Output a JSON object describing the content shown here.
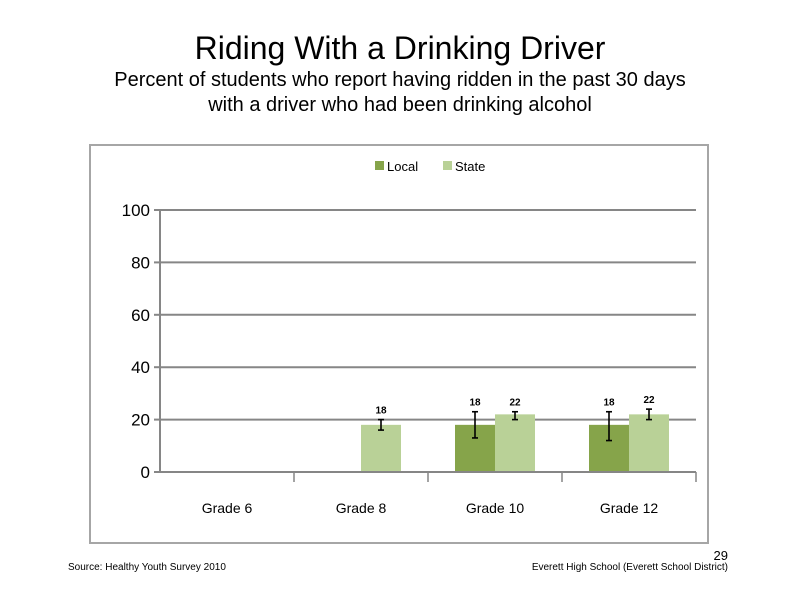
{
  "title": "Riding With a Drinking Driver",
  "subtitle_line1": "Percent of students who report having ridden in the past 30 days",
  "subtitle_line2": "with a driver who had been drinking alcohol",
  "footer": {
    "source": "Source: Healthy Youth Survey 2010",
    "school": "Everett High School (Everett School District)",
    "page": "29"
  },
  "chart_data": {
    "type": "bar",
    "categories": [
      "Grade 6",
      "Grade 8",
      "Grade 10",
      "Grade 12"
    ],
    "series": [
      {
        "name": "Local",
        "color": "#86a44a",
        "values": [
          null,
          null,
          18,
          18
        ],
        "labels": [
          "",
          "",
          "18",
          "18"
        ],
        "err_low": [
          null,
          null,
          13,
          12
        ],
        "err_high": [
          null,
          null,
          23,
          23
        ]
      },
      {
        "name": "State",
        "color": "#b9d197",
        "values": [
          null,
          18,
          22,
          22
        ],
        "labels": [
          "",
          "18",
          "22",
          "22"
        ],
        "err_low": [
          null,
          16,
          20,
          20
        ],
        "err_high": [
          null,
          20,
          23,
          24
        ]
      }
    ],
    "ylim": [
      0,
      100
    ],
    "yticks": [
      "0",
      "20",
      "40",
      "60",
      "80",
      "100"
    ],
    "legend": "top",
    "grid": true
  }
}
